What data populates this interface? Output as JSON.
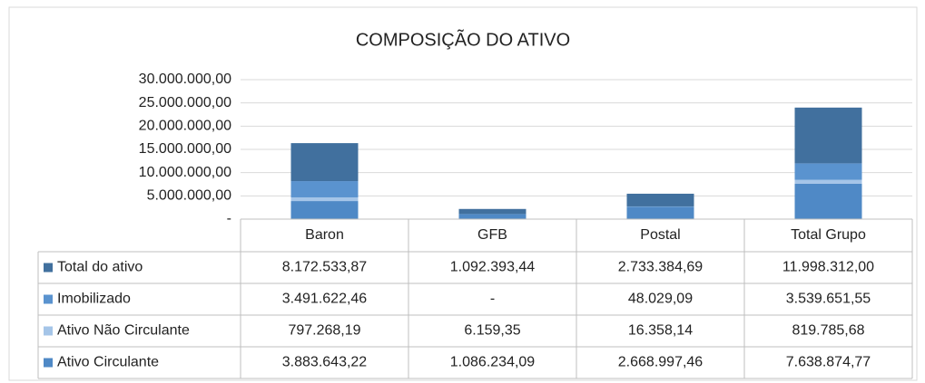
{
  "chart_data": {
    "type": "stacked_bar",
    "title": "COMPOSIÇÃO DO ATIVO",
    "categories": [
      "Baron",
      "GFB",
      "Postal",
      "Total Grupo"
    ],
    "series": [
      {
        "name": "Total do ativo",
        "color": "#41709e",
        "values": [
          8172533.87,
          1092393.44,
          2733384.69,
          11998312.0
        ],
        "value_labels": [
          "8.172.533,87",
          "1.092.393,44",
          "2.733.384,69",
          "11.998.312,00"
        ]
      },
      {
        "name": "Imobilizado",
        "color": "#5a93cf",
        "values": [
          3491622.46,
          0,
          48029.09,
          3539651.55
        ],
        "value_labels": [
          "3.491.622,46",
          "-",
          "48.029,09",
          "3.539.651,55"
        ]
      },
      {
        "name": "Ativo Não Circulante",
        "color": "#a5c5e8",
        "values": [
          797268.19,
          6159.35,
          16358.14,
          819785.68
        ],
        "value_labels": [
          "797.268,19",
          "6.159,35",
          "16.358,14",
          "819.785,68"
        ]
      },
      {
        "name": "Ativo Circulante",
        "color": "#4f89c6",
        "values": [
          3883643.22,
          1086234.09,
          2668997.46,
          7638874.77
        ],
        "value_labels": [
          "3.883.643,22",
          "1.086.234,09",
          "2.668.997,46",
          "7.638.874,77"
        ]
      }
    ],
    "ylim": [
      0,
      30000000
    ],
    "yticks": [
      {
        "value": 0,
        "label": "-"
      },
      {
        "value": 5000000,
        "label": "5.000.000,00"
      },
      {
        "value": 10000000,
        "label": "10.000.000,00"
      },
      {
        "value": 15000000,
        "label": "15.000.000,00"
      },
      {
        "value": 20000000,
        "label": "20.000.000,00"
      },
      {
        "value": 25000000,
        "label": "25.000.000,00"
      },
      {
        "value": 30000000,
        "label": "30.000.000,00"
      }
    ],
    "grid": true
  }
}
